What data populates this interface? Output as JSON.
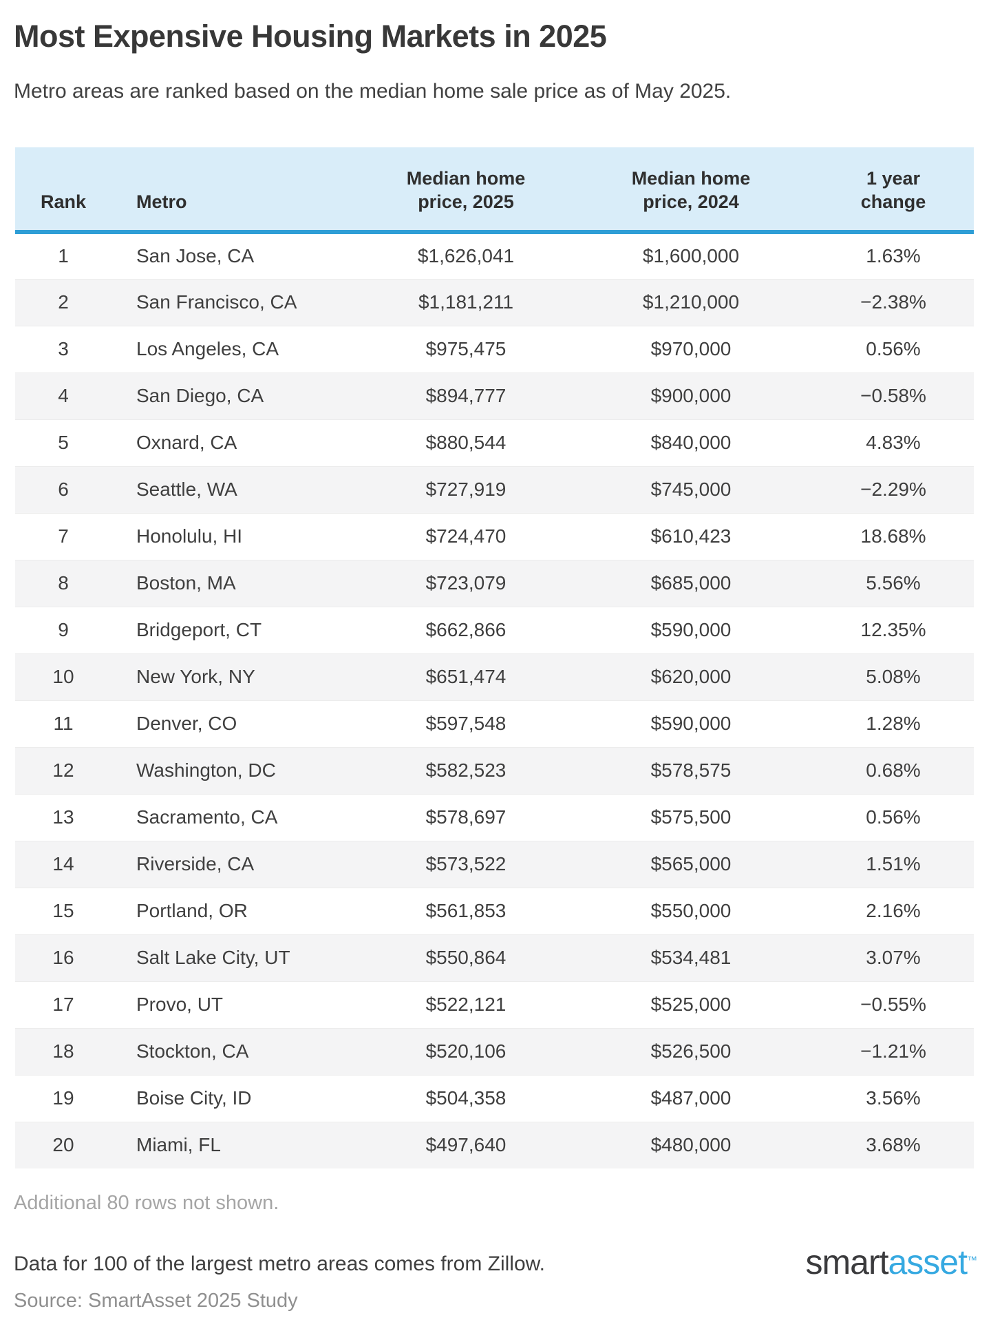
{
  "page": {
    "title": "Most Expensive Housing Markets in 2025",
    "subtitle": "Metro areas are ranked based on the median home sale price as of May 2025."
  },
  "chart_data": {
    "type": "table",
    "title": "Most Expensive Housing Markets in 2025",
    "columns": [
      [
        "Rank"
      ],
      [
        "Metro"
      ],
      [
        "Median home",
        "price, 2025"
      ],
      [
        "Median home",
        "price, 2024"
      ],
      [
        "1 year",
        "change"
      ]
    ],
    "rows": [
      {
        "rank": "1",
        "metro": "San Jose, CA",
        "price_2025": "$1,626,041",
        "price_2024": "$1,600,000",
        "change": "1.63%"
      },
      {
        "rank": "2",
        "metro": "San Francisco, CA",
        "price_2025": "$1,181,211",
        "price_2024": "$1,210,000",
        "change": "−2.38%"
      },
      {
        "rank": "3",
        "metro": "Los Angeles, CA",
        "price_2025": "$975,475",
        "price_2024": "$970,000",
        "change": "0.56%"
      },
      {
        "rank": "4",
        "metro": "San Diego, CA",
        "price_2025": "$894,777",
        "price_2024": "$900,000",
        "change": "−0.58%"
      },
      {
        "rank": "5",
        "metro": "Oxnard, CA",
        "price_2025": "$880,544",
        "price_2024": "$840,000",
        "change": "4.83%"
      },
      {
        "rank": "6",
        "metro": "Seattle, WA",
        "price_2025": "$727,919",
        "price_2024": "$745,000",
        "change": "−2.29%"
      },
      {
        "rank": "7",
        "metro": "Honolulu, HI",
        "price_2025": "$724,470",
        "price_2024": "$610,423",
        "change": "18.68%"
      },
      {
        "rank": "8",
        "metro": "Boston, MA",
        "price_2025": "$723,079",
        "price_2024": "$685,000",
        "change": "5.56%"
      },
      {
        "rank": "9",
        "metro": "Bridgeport, CT",
        "price_2025": "$662,866",
        "price_2024": "$590,000",
        "change": "12.35%"
      },
      {
        "rank": "10",
        "metro": "New York, NY",
        "price_2025": "$651,474",
        "price_2024": "$620,000",
        "change": "5.08%"
      },
      {
        "rank": "11",
        "metro": "Denver, CO",
        "price_2025": "$597,548",
        "price_2024": "$590,000",
        "change": "1.28%"
      },
      {
        "rank": "12",
        "metro": "Washington, DC",
        "price_2025": "$582,523",
        "price_2024": "$578,575",
        "change": "0.68%"
      },
      {
        "rank": "13",
        "metro": "Sacramento, CA",
        "price_2025": "$578,697",
        "price_2024": "$575,500",
        "change": "0.56%"
      },
      {
        "rank": "14",
        "metro": "Riverside, CA",
        "price_2025": "$573,522",
        "price_2024": "$565,000",
        "change": "1.51%"
      },
      {
        "rank": "15",
        "metro": "Portland, OR",
        "price_2025": "$561,853",
        "price_2024": "$550,000",
        "change": "2.16%"
      },
      {
        "rank": "16",
        "metro": "Salt Lake City, UT",
        "price_2025": "$550,864",
        "price_2024": "$534,481",
        "change": "3.07%"
      },
      {
        "rank": "17",
        "metro": "Provo, UT",
        "price_2025": "$522,121",
        "price_2024": "$525,000",
        "change": "−0.55%"
      },
      {
        "rank": "18",
        "metro": "Stockton, CA",
        "price_2025": "$520,106",
        "price_2024": "$526,500",
        "change": "−1.21%"
      },
      {
        "rank": "19",
        "metro": "Boise City, ID",
        "price_2025": "$504,358",
        "price_2024": "$487,000",
        "change": "3.56%"
      },
      {
        "rank": "20",
        "metro": "Miami, FL",
        "price_2025": "$497,640",
        "price_2024": "$480,000",
        "change": "3.68%"
      }
    ]
  },
  "notes": {
    "additional_rows": "Additional 80 rows not shown.",
    "data_note": "Data for 100 of the largest metro areas comes from Zillow.",
    "source": "Source: SmartAsset 2025 Study"
  },
  "logo": {
    "smart": "smart",
    "asset": "asset",
    "tm": "™"
  },
  "colors": {
    "header_bg": "#d9edf9",
    "header_border": "#2e9ed6",
    "row_stripe": "#f4f4f5",
    "body_text": "#3f3f3f",
    "muted_text": "#a5a5a5",
    "accent_blue": "#36a9e1"
  }
}
